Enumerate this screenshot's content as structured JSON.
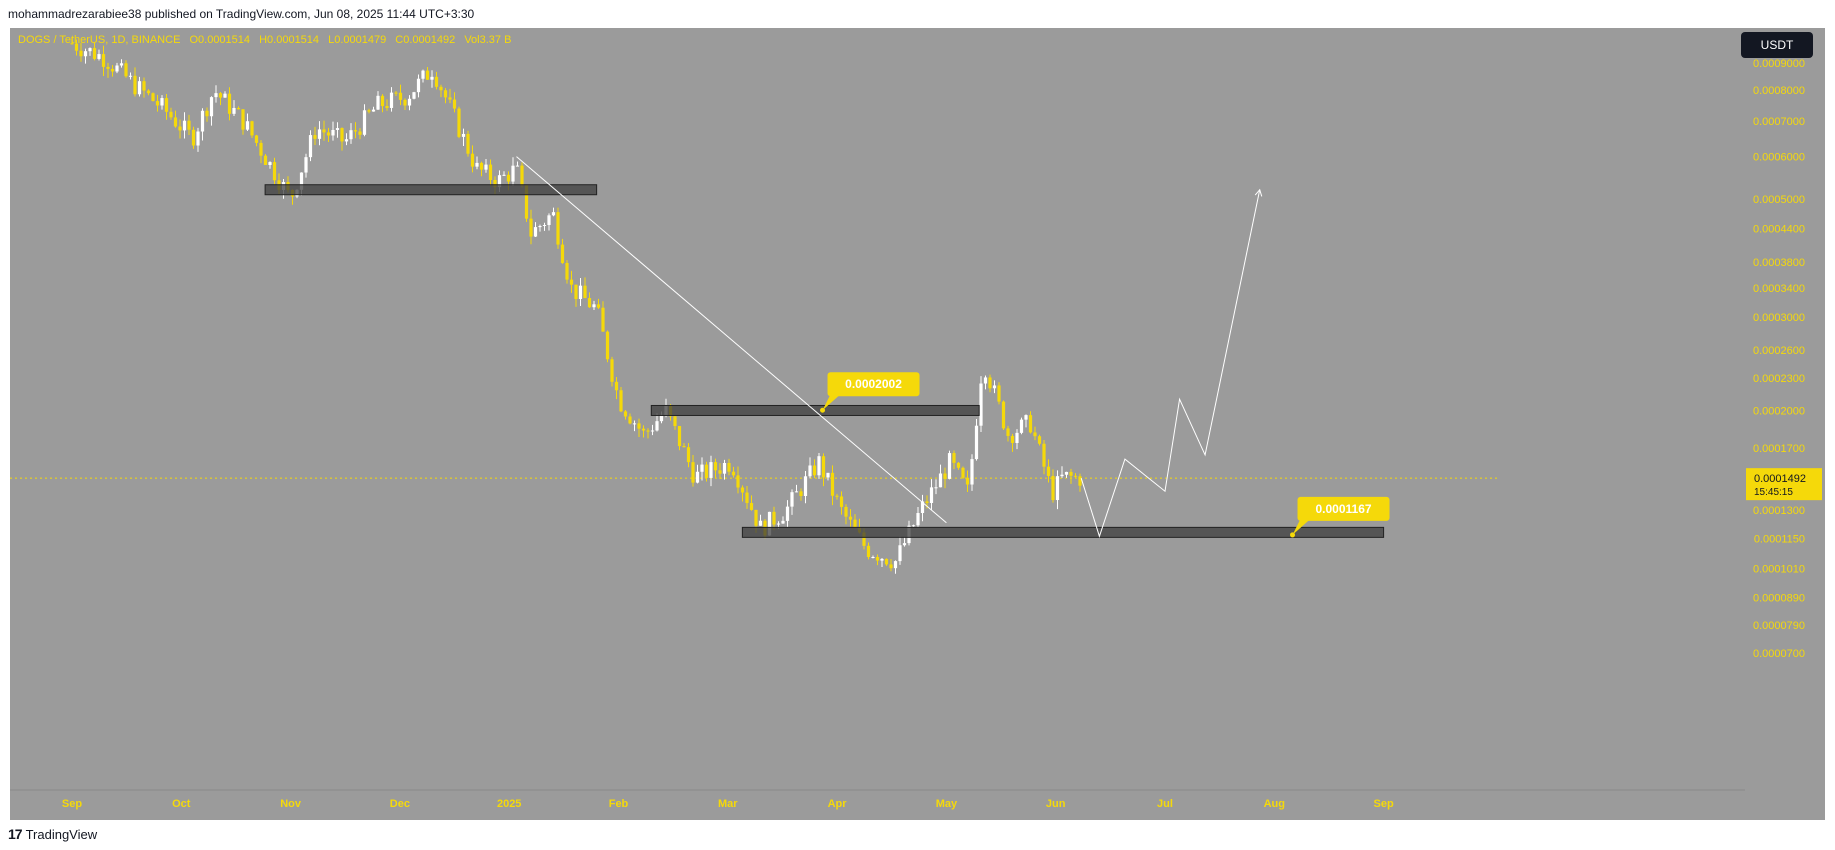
{
  "header": {
    "publisher": "mohammadrezarabiee38 published on TradingView.com, Jun 08, 2025 11:44 UTC+3:30"
  },
  "symbol": {
    "name": "DOGS / TetherUS, 1D, BINANCE",
    "open": "O0.0001514",
    "high": "H0.0001514",
    "low": "L0.0001479",
    "close": "C0.0001492",
    "volume": "Vol3.37 B"
  },
  "currency_button": "USDT",
  "footer": {
    "brand": "TradingView",
    "logo": "TV-logo-icon"
  },
  "colors": {
    "background": "#9b9b9b",
    "bull": "#ffffff",
    "bear": "#f5d90a",
    "accent": "#f5d90a",
    "zone": "#3d3d3d"
  },
  "chart_data": {
    "type": "candlestick",
    "price_scale": "log",
    "x_labels": [
      "Sep",
      "Oct",
      "Nov",
      "Dec",
      "2025",
      "Feb",
      "Mar",
      "Apr",
      "May",
      "Jun",
      "Jul",
      "Aug",
      "Sep"
    ],
    "y_ticks": [
      "0.0009000",
      "0.0008000",
      "0.0007000",
      "0.0006000",
      "0.0005000",
      "0.0004400",
      "0.0003800",
      "0.0003400",
      "0.0003000",
      "0.0002600",
      "0.0002300",
      "0.0002000",
      "0.0001700",
      "0.0001300",
      "0.0001150",
      "0.0001010",
      "0.0000890",
      "0.0000790",
      "0.0000700"
    ],
    "ylim": [
      7e-05,
      0.00095
    ],
    "last_price": "0.0001492",
    "countdown": "15:45:15",
    "price_series": [
      {
        "date": "Sep 01",
        "price": 0.00098
      },
      {
        "date": "Sep 10",
        "price": 0.00092
      },
      {
        "date": "Sep 18",
        "price": 0.00082
      },
      {
        "date": "Sep 26",
        "price": 0.00074
      },
      {
        "date": "Oct 04",
        "price": 0.00065
      },
      {
        "date": "Oct 10",
        "price": 0.0008
      },
      {
        "date": "Oct 18",
        "price": 0.0007
      },
      {
        "date": "Oct 26",
        "price": 0.00057
      },
      {
        "date": "Nov 01",
        "price": 0.0005
      },
      {
        "date": "Nov 08",
        "price": 0.00068
      },
      {
        "date": "Nov 16",
        "price": 0.00064
      },
      {
        "date": "Nov 25",
        "price": 0.00075
      },
      {
        "date": "Dec 03",
        "price": 0.00078
      },
      {
        "date": "Dec 10",
        "price": 0.00088
      },
      {
        "date": "Dec 16",
        "price": 0.00071
      },
      {
        "date": "Dec 22",
        "price": 0.00057
      },
      {
        "date": "Dec 28",
        "price": 0.00054
      },
      {
        "date": "Jan 03",
        "price": 0.00057
      },
      {
        "date": "Jan 07",
        "price": 0.00043
      },
      {
        "date": "Jan 13",
        "price": 0.00047
      },
      {
        "date": "Jan 18",
        "price": 0.00034
      },
      {
        "date": "Jan 25",
        "price": 0.00031
      },
      {
        "date": "Feb 01",
        "price": 0.00021
      },
      {
        "date": "Feb 08",
        "price": 0.00018
      },
      {
        "date": "Feb 14",
        "price": 0.0002
      },
      {
        "date": "Feb 22",
        "price": 0.00015
      },
      {
        "date": "Mar 02",
        "price": 0.00016
      },
      {
        "date": "Mar 10",
        "price": 0.00012
      },
      {
        "date": "Mar 17",
        "price": 0.00013
      },
      {
        "date": "Mar 26",
        "price": 0.00016
      },
      {
        "date": "Apr 02",
        "price": 0.00013
      },
      {
        "date": "Apr 09",
        "price": 0.00011
      },
      {
        "date": "Apr 17",
        "price": 0.000104
      },
      {
        "date": "Apr 24",
        "price": 0.00013
      },
      {
        "date": "May 02",
        "price": 0.00016
      },
      {
        "date": "May 07",
        "price": 0.00014
      },
      {
        "date": "May 11",
        "price": 0.00025
      },
      {
        "date": "May 18",
        "price": 0.00018
      },
      {
        "date": "May 24",
        "price": 0.00019
      },
      {
        "date": "May 30",
        "price": 0.00014
      },
      {
        "date": "Jun 03",
        "price": 0.00015
      },
      {
        "date": "Jun 08",
        "price": 0.0001492
      }
    ],
    "zones": [
      {
        "from": "Oct 24",
        "to": "Jan 25",
        "price": 0.00052
      },
      {
        "from": "Feb 10",
        "to": "May 10",
        "price": 0.0002
      },
      {
        "from": "Mar 05",
        "to": "Sep 01",
        "price": 0.000118
      }
    ],
    "trendline": {
      "from": {
        "date": "Jan 03",
        "price": 0.0006
      },
      "to": {
        "date": "May 01",
        "price": 0.000123
      }
    },
    "labels": [
      {
        "text": "0.0002002",
        "date": "Mar 27",
        "price": 0.0002002
      },
      {
        "text": "0.0001167",
        "date": "Aug 06",
        "price": 0.0001167
      }
    ],
    "projection": [
      {
        "date": "Jun 08",
        "price": 0.0001492
      },
      {
        "date": "Jun 13",
        "price": 0.000116
      },
      {
        "date": "Jun 20",
        "price": 0.000162
      },
      {
        "date": "Jul 01",
        "price": 0.000141
      },
      {
        "date": "Jul 05",
        "price": 0.00021
      },
      {
        "date": "Jul 12",
        "price": 0.000165
      },
      {
        "date": "Jul 27",
        "price": 0.00052
      }
    ]
  }
}
